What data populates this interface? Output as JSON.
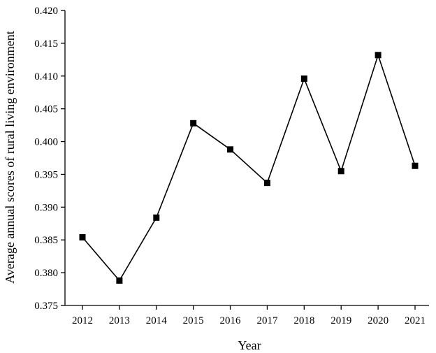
{
  "chart_data": {
    "type": "line",
    "title": "",
    "xlabel": "Year",
    "ylabel": "Average annual scores of rural living environment",
    "categories": [
      "2012",
      "2013",
      "2014",
      "2015",
      "2016",
      "2017",
      "2018",
      "2019",
      "2020",
      "2021"
    ],
    "series": [
      {
        "values": [
          0.3854,
          0.3788,
          0.3884,
          0.4028,
          0.3988,
          0.3937,
          0.4096,
          0.3955,
          0.4132,
          0.3963
        ],
        "marker": "square",
        "color": "#000000"
      }
    ],
    "ylim": [
      0.375,
      0.42
    ],
    "yticks": [
      "0.375",
      "0.380",
      "0.385",
      "0.390",
      "0.395",
      "0.400",
      "0.405",
      "0.410",
      "0.415",
      "0.420"
    ],
    "grid": false,
    "legend": "none"
  }
}
